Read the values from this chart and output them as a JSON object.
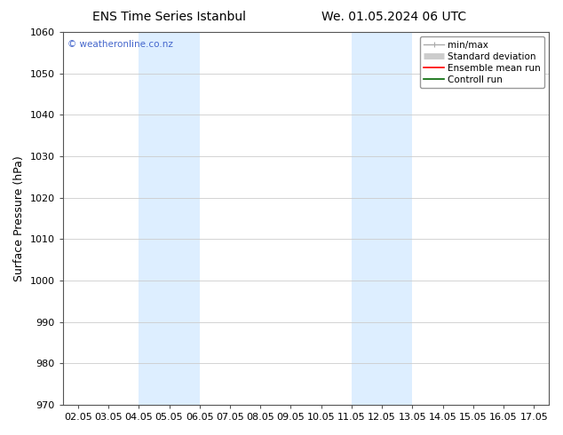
{
  "title_left": "ENS Time Series Istanbul",
  "title_right": "We. 01.05.2024 06 UTC",
  "ylabel": "Surface Pressure (hPa)",
  "ylim": [
    970,
    1060
  ],
  "yticks": [
    970,
    980,
    990,
    1000,
    1010,
    1020,
    1030,
    1040,
    1050,
    1060
  ],
  "xtick_labels": [
    "02.05",
    "03.05",
    "04.05",
    "05.05",
    "06.05",
    "07.05",
    "08.05",
    "09.05",
    "10.05",
    "11.05",
    "12.05",
    "13.05",
    "14.05",
    "15.05",
    "16.05",
    "17.05"
  ],
  "num_xticks": 16,
  "xlim": [
    0,
    15
  ],
  "shaded_regions": [
    {
      "xmin": 2.0,
      "xmax": 4.0,
      "color": "#ddeeff"
    },
    {
      "xmin": 9.0,
      "xmax": 11.0,
      "color": "#ddeeff"
    }
  ],
  "legend_entries": [
    {
      "label": "min/max",
      "color": "#aaaaaa",
      "lw": 1.0
    },
    {
      "label": "Standard deviation",
      "color": "#cccccc",
      "lw": 5
    },
    {
      "label": "Ensemble mean run",
      "color": "#ff0000",
      "lw": 1.2
    },
    {
      "label": "Controll run",
      "color": "#006600",
      "lw": 1.2
    }
  ],
  "watermark": "© weatheronline.co.nz",
  "watermark_color": "#4466cc",
  "background_color": "#ffffff",
  "grid_color": "#cccccc",
  "spine_color": "#555555",
  "title_fontsize": 10,
  "label_fontsize": 9,
  "tick_fontsize": 8,
  "legend_fontsize": 7.5
}
